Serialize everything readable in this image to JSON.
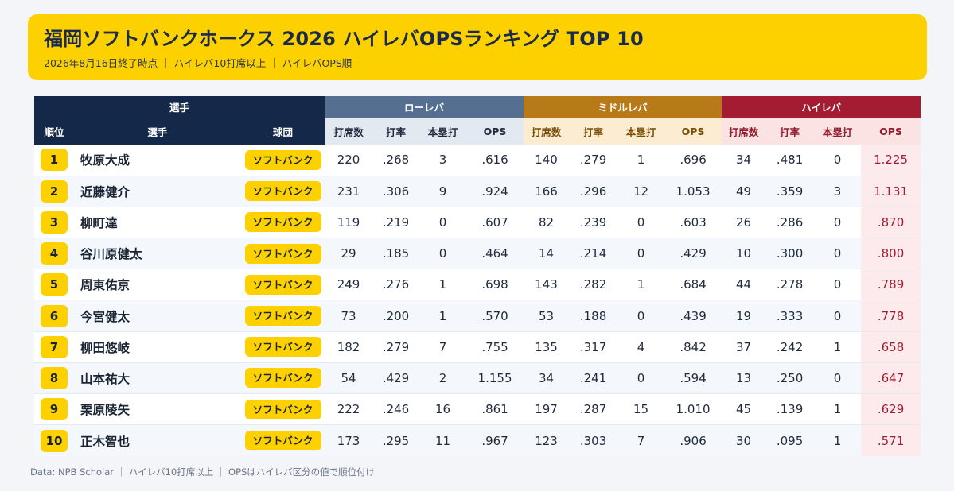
{
  "header": {
    "title": "福岡ソフトバンクホークス 2026 ハイレバOPSランキング TOP 10",
    "subtitle": "2026年8月16日終了時点 ｜ ハイレバ10打席以上 ｜ ハイレバOPS順"
  },
  "footer": "Data: NPB Scholar ｜ ハイレバ10打席以上 ｜ OPSはハイレバ区分の値で順位付け",
  "chart_data": {
    "type": "table",
    "column_groups": [
      "選手",
      "ローレバ",
      "ミドルレバ",
      "ハイレバ"
    ],
    "player_columns": [
      "順位",
      "選手",
      "球団"
    ],
    "stat_columns": [
      "打席数",
      "打率",
      "本塁打",
      "OPS"
    ],
    "colors": {
      "player": "#14284a",
      "low": "#556f90",
      "mid": "#b87a18",
      "high": "#a31c31",
      "accent": "#fdd100"
    },
    "rows": [
      {
        "rank": "1",
        "name": "牧原大成",
        "team": "ソフトバンク",
        "low": [
          "220",
          ".268",
          "3",
          ".616"
        ],
        "mid": [
          "140",
          ".279",
          "1",
          ".696"
        ],
        "high": [
          "34",
          ".481",
          "0",
          "1.225"
        ]
      },
      {
        "rank": "2",
        "name": "近藤健介",
        "team": "ソフトバンク",
        "low": [
          "231",
          ".306",
          "9",
          ".924"
        ],
        "mid": [
          "166",
          ".296",
          "12",
          "1.053"
        ],
        "high": [
          "49",
          ".359",
          "3",
          "1.131"
        ]
      },
      {
        "rank": "3",
        "name": "柳町達",
        "team": "ソフトバンク",
        "low": [
          "119",
          ".219",
          "0",
          ".607"
        ],
        "mid": [
          "82",
          ".239",
          "0",
          ".603"
        ],
        "high": [
          "26",
          ".286",
          "0",
          ".870"
        ]
      },
      {
        "rank": "4",
        "name": "谷川原健太",
        "team": "ソフトバンク",
        "low": [
          "29",
          ".185",
          "0",
          ".464"
        ],
        "mid": [
          "14",
          ".214",
          "0",
          ".429"
        ],
        "high": [
          "10",
          ".300",
          "0",
          ".800"
        ]
      },
      {
        "rank": "5",
        "name": "周東佑京",
        "team": "ソフトバンク",
        "low": [
          "249",
          ".276",
          "1",
          ".698"
        ],
        "mid": [
          "143",
          ".282",
          "1",
          ".684"
        ],
        "high": [
          "44",
          ".278",
          "0",
          ".789"
        ]
      },
      {
        "rank": "6",
        "name": "今宮健太",
        "team": "ソフトバンク",
        "low": [
          "73",
          ".200",
          "1",
          ".570"
        ],
        "mid": [
          "53",
          ".188",
          "0",
          ".439"
        ],
        "high": [
          "19",
          ".333",
          "0",
          ".778"
        ]
      },
      {
        "rank": "7",
        "name": "柳田悠岐",
        "team": "ソフトバンク",
        "low": [
          "182",
          ".279",
          "7",
          ".755"
        ],
        "mid": [
          "135",
          ".317",
          "4",
          ".842"
        ],
        "high": [
          "37",
          ".242",
          "1",
          ".658"
        ]
      },
      {
        "rank": "8",
        "name": "山本祐大",
        "team": "ソフトバンク",
        "low": [
          "54",
          ".429",
          "2",
          "1.155"
        ],
        "mid": [
          "34",
          ".241",
          "0",
          ".594"
        ],
        "high": [
          "13",
          ".250",
          "0",
          ".647"
        ]
      },
      {
        "rank": "9",
        "name": "栗原陵矢",
        "team": "ソフトバンク",
        "low": [
          "222",
          ".246",
          "16",
          ".861"
        ],
        "mid": [
          "197",
          ".287",
          "15",
          "1.010"
        ],
        "high": [
          "45",
          ".139",
          "1",
          ".629"
        ]
      },
      {
        "rank": "10",
        "name": "正木智也",
        "team": "ソフトバンク",
        "low": [
          "173",
          ".295",
          "11",
          ".967"
        ],
        "mid": [
          "123",
          ".303",
          "7",
          ".906"
        ],
        "high": [
          "30",
          ".095",
          "1",
          ".571"
        ]
      }
    ]
  }
}
